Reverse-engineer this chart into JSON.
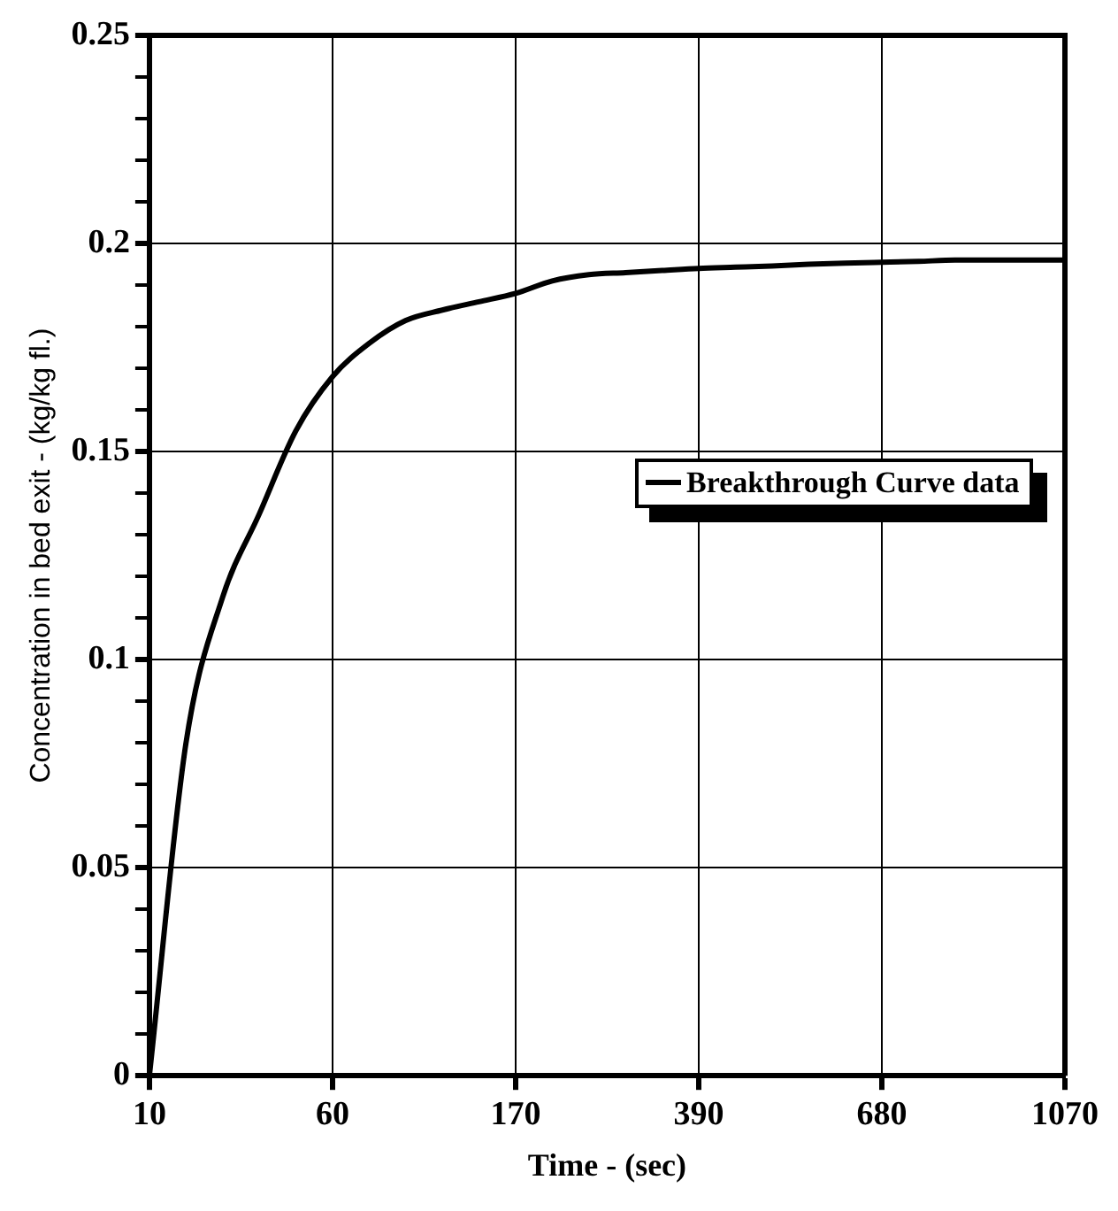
{
  "chart_data": {
    "type": "line",
    "xlabel": "Time - (sec)",
    "ylabel": "Concentration in bed exit - (kg/kg fl.)",
    "categories": [
      "10",
      null,
      null,
      null,
      null,
      "60",
      null,
      null,
      null,
      null,
      "170",
      null,
      null,
      null,
      null,
      "390",
      null,
      null,
      null,
      null,
      "680",
      null,
      null,
      null,
      null,
      "1070"
    ],
    "series": [
      {
        "name": "Breakthrough Curve data",
        "color": "#000000",
        "values": [
          0.0,
          0.08,
          0.115,
          0.135,
          0.155,
          0.168,
          0.176,
          0.1815,
          0.184,
          0.186,
          0.188,
          0.191,
          0.1925,
          0.193,
          0.1935,
          0.194,
          0.1943,
          0.1946,
          0.195,
          0.1953,
          0.1955,
          0.1957,
          0.196,
          0.196,
          0.196,
          0.196
        ]
      }
    ],
    "ylim": [
      0,
      0.25
    ],
    "yticks": [
      0,
      {
        "value": 0.01,
        "label": null
      },
      {
        "value": 0.02,
        "label": null
      },
      {
        "value": 0.03,
        "label": null
      },
      {
        "value": 0.04,
        "label": null
      },
      0.05,
      {
        "value": 0.06,
        "label": null
      },
      {
        "value": 0.07,
        "label": null
      },
      {
        "value": 0.08,
        "label": null
      },
      {
        "value": 0.09,
        "label": null
      },
      0.1,
      {
        "value": 0.11,
        "label": null
      },
      {
        "value": 0.12,
        "label": null
      },
      {
        "value": 0.13,
        "label": null
      },
      {
        "value": 0.14,
        "label": null
      },
      0.15,
      {
        "value": 0.16,
        "label": null
      },
      {
        "value": 0.17,
        "label": null
      },
      {
        "value": 0.18,
        "label": null
      },
      {
        "value": 0.19,
        "label": null
      },
      0.2,
      {
        "value": 0.21,
        "label": null
      },
      {
        "value": 0.22,
        "label": null
      },
      {
        "value": 0.23,
        "label": null
      },
      {
        "value": 0.24,
        "label": null
      },
      0.25
    ],
    "grid": true,
    "legend": "right",
    "marker": "none",
    "line_style": "solid"
  }
}
